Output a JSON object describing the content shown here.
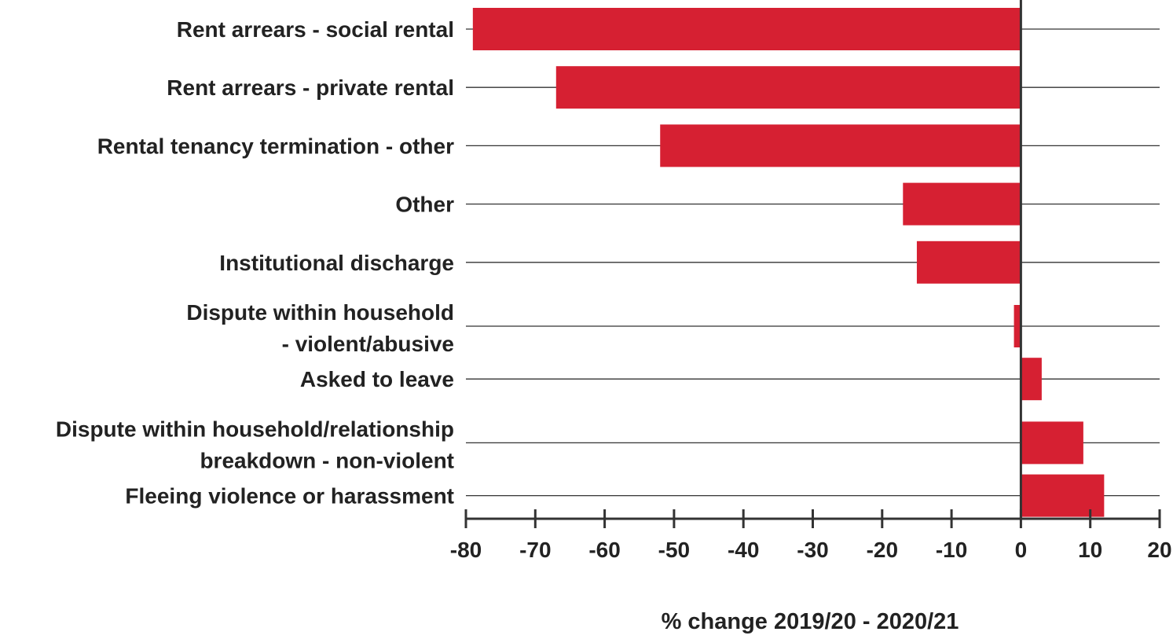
{
  "chart_data": {
    "type": "bar",
    "orientation": "horizontal",
    "categories": [
      [
        "Rent arrears - social rental"
      ],
      [
        "Rent arrears - private rental"
      ],
      [
        "Rental tenancy termination - other"
      ],
      [
        "Other"
      ],
      [
        "Institutional discharge"
      ],
      [
        "Dispute within household",
        "- violent/abusive"
      ],
      [
        "Asked to leave"
      ],
      [
        "Dispute within household/relationship",
        "breakdown - non-violent"
      ],
      [
        "Fleeing violence or harassment"
      ]
    ],
    "values": [
      -79,
      -67,
      -52,
      -17,
      -15,
      -1,
      3,
      9,
      12
    ],
    "xlabel": "% change 2019/20 - 2020/21",
    "ylabel": "",
    "title": "",
    "xlim": [
      -80,
      20
    ],
    "ticks": [
      -80,
      -70,
      -60,
      -50,
      -40,
      -30,
      -20,
      -10,
      0,
      10,
      20
    ],
    "bar_color": "#d62032",
    "grid": true
  }
}
